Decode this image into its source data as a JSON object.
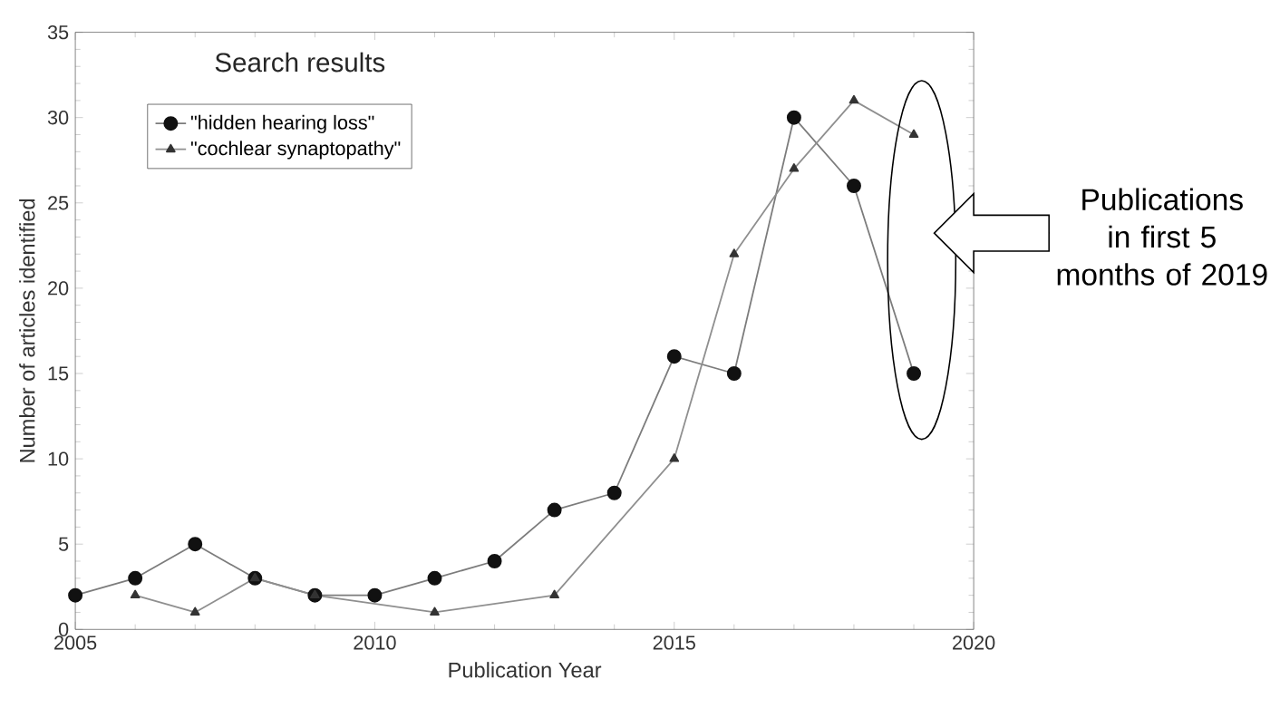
{
  "chart_data": {
    "type": "line",
    "xlabel": "Publication Year",
    "ylabel": "Number of articles identified",
    "legend_title": "Search results",
    "legend": "top left",
    "grid": false,
    "xlim": [
      2005,
      2020
    ],
    "xticks": [
      2005,
      2010,
      2015,
      2020
    ],
    "ylim": [
      0,
      35
    ],
    "yticks": [
      0,
      5,
      10,
      15,
      20,
      25,
      30,
      35
    ],
    "series": [
      {
        "name": "\"hidden hearing loss\"",
        "color": "#111111",
        "marker": "circle",
        "x": [
          2005,
          2006,
          2007,
          2008,
          2009,
          2010,
          2011,
          2012,
          2013,
          2014,
          2015,
          2016,
          2017,
          2018,
          2019
        ],
        "values": [
          2,
          3,
          5,
          3,
          2,
          2,
          3,
          4,
          7,
          8,
          16,
          15,
          30,
          26,
          15
        ]
      },
      {
        "name": "\"cochlear synaptopathy\"",
        "color": "#333333",
        "marker": "triangle",
        "x": [
          2006,
          2007,
          2008,
          2009,
          2011,
          2013,
          2015,
          2016,
          2017,
          2018,
          2019
        ],
        "values": [
          2,
          1,
          3,
          2,
          1,
          2,
          10,
          22,
          27,
          31,
          29
        ]
      }
    ],
    "annotations": [
      "Publications in first 5 months of 2019"
    ]
  }
}
